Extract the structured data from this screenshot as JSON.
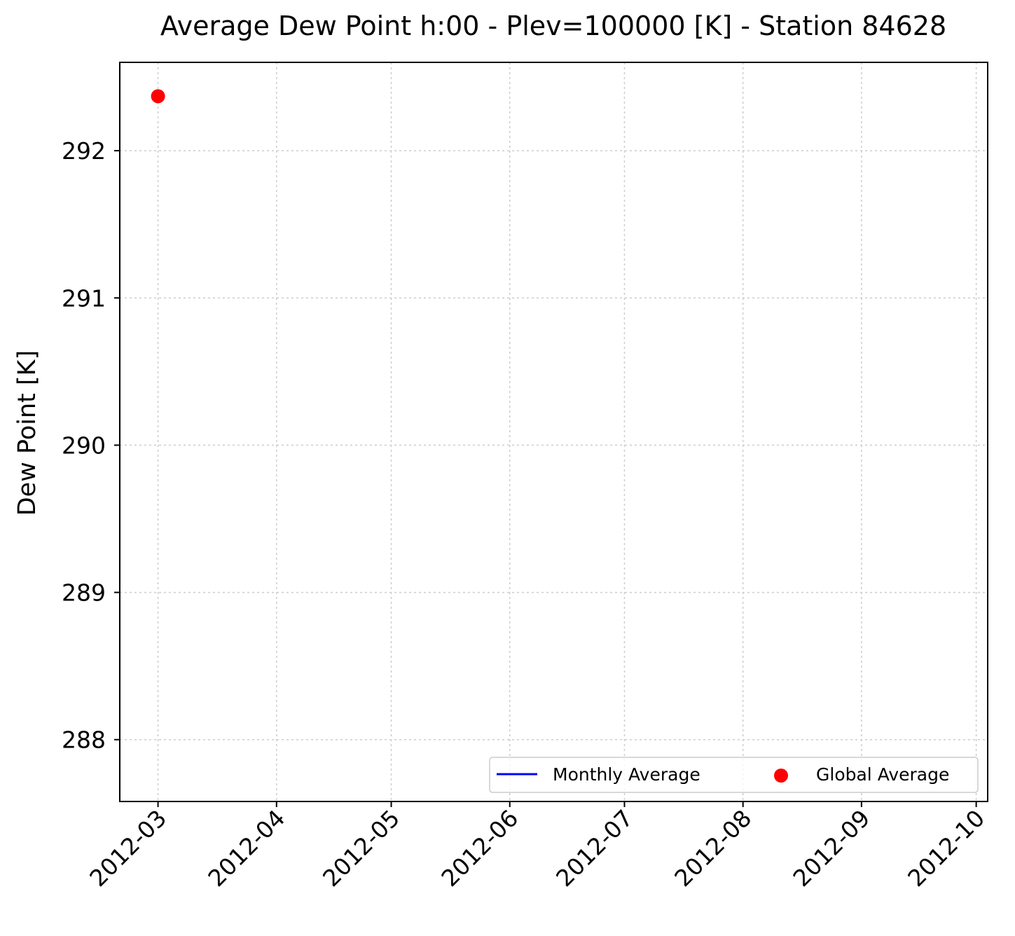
{
  "chart_data": {
    "type": "scatter",
    "title": "Average Dew Point h:00 - Plev=100000 [K] - Station 84628",
    "xlabel": "",
    "ylabel": "Dew Point [K]",
    "x_ticks": [
      "2012-03",
      "2012-04",
      "2012-05",
      "2012-06",
      "2012-07",
      "2012-08",
      "2012-09",
      "2012-10"
    ],
    "y_ticks": [
      288,
      289,
      290,
      291,
      292
    ],
    "ylim": [
      287.58,
      292.6
    ],
    "xlim": [
      "2012-02-20",
      "2012-10-04"
    ],
    "grid": true,
    "legend_position": "lower-right",
    "series": [
      {
        "name": "Monthly Average",
        "kind": "line",
        "color": "#0000ff",
        "points": []
      },
      {
        "name": "Global Average",
        "kind": "scatter",
        "color": "#ff0000",
        "points": [
          {
            "x": "2012-03-01",
            "y": 292.37
          }
        ]
      }
    ]
  }
}
